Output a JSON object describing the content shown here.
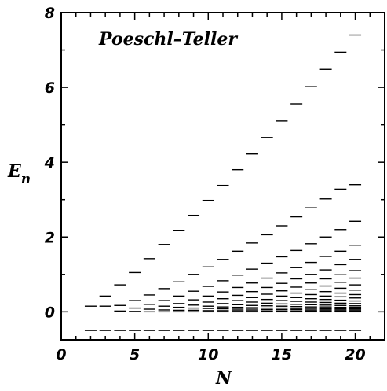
{
  "chart_data": {
    "type": "scatter",
    "title": "Poeschl–Teller",
    "xlabel": "N",
    "ylabel": "E",
    "ylabel_subscript": "n",
    "xlim": [
      0,
      22
    ],
    "ylim": [
      -0.75,
      8
    ],
    "xticks": [
      0,
      5,
      10,
      15,
      20
    ],
    "yticks": [
      0,
      2,
      4,
      6,
      8
    ],
    "marker": "horizontal-dash",
    "grid": false,
    "legend": "none",
    "series": [
      {
        "x": [
          2,
          3,
          4,
          5,
          6,
          7,
          8,
          9,
          10,
          11,
          12,
          13,
          14,
          15,
          16,
          17,
          18,
          19,
          20
        ],
        "values": [
          -0.5,
          -0.5,
          -0.5,
          -0.5,
          -0.5,
          -0.5,
          -0.5,
          -0.5,
          -0.5,
          -0.5,
          -0.5,
          -0.5,
          -0.5,
          -0.5,
          -0.5,
          -0.5,
          -0.5,
          -0.5,
          -0.5
        ]
      },
      {
        "x": [
          2,
          3,
          4,
          5,
          6,
          7,
          8,
          9,
          10,
          11,
          12,
          13,
          14,
          15,
          16,
          17,
          18,
          19,
          20
        ],
        "values": [
          0.15,
          0.15,
          0.02,
          0.01,
          0.0,
          0.0,
          0.0,
          0.0,
          0.0,
          0.0,
          0.0,
          0.0,
          0.0,
          0.0,
          0.0,
          0.0,
          0.0,
          0.0,
          0.0
        ]
      },
      {
        "x": [
          3,
          4,
          5,
          6,
          7,
          8,
          9,
          10,
          11,
          12,
          13,
          14,
          15,
          16,
          17,
          18,
          19,
          20
        ],
        "values": [
          0.42,
          0.17,
          0.1,
          0.07,
          0.05,
          0.04,
          0.04,
          0.03,
          0.03,
          0.03,
          0.03,
          0.02,
          0.02,
          0.02,
          0.02,
          0.02,
          0.02,
          0.02
        ]
      },
      {
        "x": [
          4,
          5,
          6,
          7,
          8,
          9,
          10,
          11,
          12,
          13,
          14,
          15,
          16,
          17,
          18,
          19,
          20
        ],
        "values": [
          0.72,
          0.3,
          0.2,
          0.15,
          0.12,
          0.1,
          0.09,
          0.08,
          0.07,
          0.07,
          0.06,
          0.06,
          0.06,
          0.05,
          0.05,
          0.05,
          0.05
        ]
      },
      {
        "x": [
          5,
          6,
          7,
          8,
          9,
          10,
          11,
          12,
          13,
          14,
          15,
          16,
          17,
          18,
          19,
          20
        ],
        "values": [
          1.05,
          0.45,
          0.3,
          0.22,
          0.18,
          0.15,
          0.13,
          0.12,
          0.11,
          0.1,
          0.1,
          0.09,
          0.09,
          0.08,
          0.08,
          0.08
        ]
      },
      {
        "x": [
          6,
          7,
          8,
          9,
          10,
          11,
          12,
          13,
          14,
          15,
          16,
          17,
          18,
          19,
          20
        ],
        "values": [
          1.42,
          0.62,
          0.42,
          0.32,
          0.26,
          0.22,
          0.19,
          0.17,
          0.16,
          0.15,
          0.14,
          0.13,
          0.13,
          0.12,
          0.12
        ]
      },
      {
        "x": [
          7,
          8,
          9,
          10,
          11,
          12,
          13,
          14,
          15,
          16,
          17,
          18,
          19,
          20
        ],
        "values": [
          1.8,
          0.8,
          0.55,
          0.42,
          0.35,
          0.3,
          0.26,
          0.23,
          0.21,
          0.2,
          0.19,
          0.18,
          0.17,
          0.16
        ]
      },
      {
        "x": [
          8,
          9,
          10,
          11,
          12,
          13,
          14,
          15,
          16,
          17,
          18,
          19,
          20
        ],
        "values": [
          2.18,
          1.0,
          0.68,
          0.53,
          0.44,
          0.38,
          0.33,
          0.3,
          0.28,
          0.26,
          0.25,
          0.23,
          0.22
        ]
      },
      {
        "x": [
          9,
          10,
          11,
          12,
          13,
          14,
          15,
          16,
          17,
          18,
          19,
          20
        ],
        "values": [
          2.58,
          1.2,
          0.83,
          0.65,
          0.54,
          0.47,
          0.42,
          0.38,
          0.35,
          0.33,
          0.31,
          0.29
        ]
      },
      {
        "x": [
          10,
          11,
          12,
          13,
          14,
          15,
          16,
          17,
          18,
          19,
          20
        ],
        "values": [
          2.98,
          1.4,
          0.98,
          0.77,
          0.65,
          0.56,
          0.5,
          0.46,
          0.42,
          0.4,
          0.37
        ]
      },
      {
        "x": [
          11,
          12,
          13,
          14,
          15,
          16,
          17,
          18,
          19,
          20
        ],
        "values": [
          3.38,
          1.62,
          1.14,
          0.9,
          0.76,
          0.66,
          0.59,
          0.54,
          0.5,
          0.46
        ]
      },
      {
        "x": [
          12,
          13,
          14,
          15,
          16,
          17,
          18,
          19,
          20
        ],
        "values": [
          3.8,
          1.84,
          1.3,
          1.04,
          0.88,
          0.77,
          0.69,
          0.63,
          0.58
        ]
      },
      {
        "x": [
          13,
          14,
          15,
          16,
          17,
          18,
          19,
          20
        ],
        "values": [
          4.22,
          2.06,
          1.47,
          1.18,
          1.0,
          0.88,
          0.79,
          0.72
        ]
      },
      {
        "x": [
          14,
          15,
          16,
          17,
          18,
          19,
          20
        ],
        "values": [
          4.66,
          2.3,
          1.64,
          1.32,
          1.12,
          0.99,
          0.9
        ]
      },
      {
        "x": [
          15,
          16,
          17,
          18,
          19,
          20
        ],
        "values": [
          5.1,
          2.54,
          1.82,
          1.48,
          1.26,
          1.1
        ]
      },
      {
        "x": [
          16,
          17,
          18,
          19,
          20
        ],
        "values": [
          5.56,
          2.78,
          2.0,
          1.62,
          1.4
        ]
      },
      {
        "x": [
          17,
          18,
          19,
          20
        ],
        "values": [
          6.02,
          3.02,
          2.2,
          1.78
        ]
      },
      {
        "x": [
          18,
          19,
          20
        ],
        "values": [
          6.48,
          3.28,
          2.42
        ]
      },
      {
        "x": [
          19,
          20
        ],
        "values": [
          6.94,
          3.4
        ]
      },
      {
        "x": [
          20
        ],
        "values": [
          7.4
        ]
      }
    ]
  }
}
